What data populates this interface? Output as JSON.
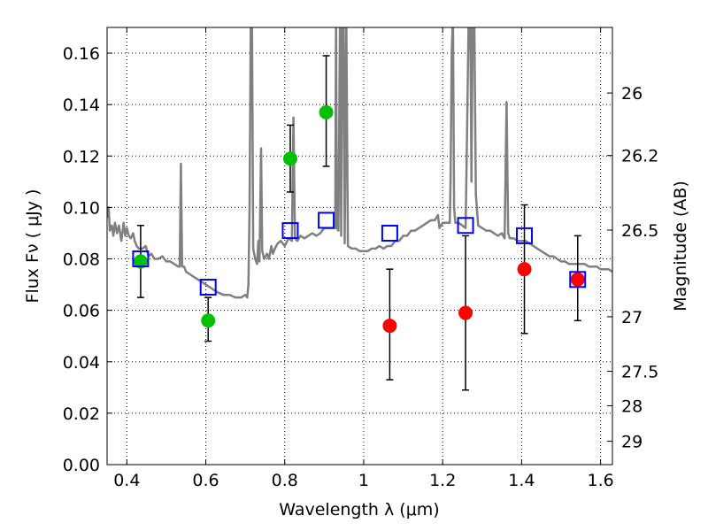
{
  "chart_data": {
    "type": "scatter",
    "xlabel": "Wavelength  λ (μm)",
    "ylabel": "Flux  Fν  ( μJy )",
    "ylabel_right": "Magnitude (AB)",
    "xlim": [
      0.35,
      1.63
    ],
    "ylim": [
      0.0,
      0.17
    ],
    "grid": true,
    "x_ticks": [
      0.4,
      0.6,
      0.8,
      1.0,
      1.2,
      1.4,
      1.6
    ],
    "x_tick_labels": [
      "0.4",
      "0.6",
      "0.8",
      "1",
      "1.2",
      "1.4",
      "1.6"
    ],
    "y_ticks": [
      0.0,
      0.02,
      0.04,
      0.06,
      0.08,
      0.1,
      0.12,
      0.14,
      0.16
    ],
    "y_tick_labels": [
      "0.00",
      "0.02",
      "0.04",
      "0.06",
      "0.08",
      "0.10",
      "0.12",
      "0.14",
      "0.16"
    ],
    "right_ticks": [
      {
        "label": "26",
        "flux": 0.1445
      },
      {
        "label": "26.2",
        "flux": 0.1202
      },
      {
        "label": "26.5",
        "flux": 0.0912
      },
      {
        "label": "27",
        "flux": 0.0575
      },
      {
        "label": "27.5",
        "flux": 0.0363
      },
      {
        "label": "28",
        "flux": 0.0229
      },
      {
        "label": "29",
        "flux": 0.0091
      }
    ],
    "colors": {
      "model": "#808080",
      "green": "#00c000",
      "red": "#ff0000",
      "model_phot": "#0000ff",
      "errorbar": "#000000",
      "grid": "#000000"
    },
    "series": [
      {
        "kind": "points",
        "color_key": "green",
        "points": [
          {
            "x": 0.435,
            "y": 0.079,
            "ylo": 0.065,
            "yhi": 0.093
          },
          {
            "x": 0.606,
            "y": 0.056,
            "ylo": 0.048,
            "yhi": 0.065
          },
          {
            "x": 0.814,
            "y": 0.119,
            "ylo": 0.106,
            "yhi": 0.132
          },
          {
            "x": 0.905,
            "y": 0.137,
            "ylo": 0.116,
            "yhi": 0.159
          }
        ]
      },
      {
        "kind": "points",
        "color_key": "red",
        "points": [
          {
            "x": 1.066,
            "y": 0.054,
            "ylo": 0.033,
            "yhi": 0.076
          },
          {
            "x": 1.258,
            "y": 0.059,
            "ylo": 0.029,
            "yhi": 0.089
          },
          {
            "x": 1.407,
            "y": 0.076,
            "ylo": 0.051,
            "yhi": 0.101
          },
          {
            "x": 1.542,
            "y": 0.072,
            "ylo": 0.056,
            "yhi": 0.089
          }
        ]
      },
      {
        "kind": "squares",
        "color_key": "model_phot",
        "points": [
          {
            "x": 0.435,
            "y": 0.08
          },
          {
            "x": 0.606,
            "y": 0.069
          },
          {
            "x": 0.814,
            "y": 0.091
          },
          {
            "x": 0.905,
            "y": 0.095
          },
          {
            "x": 1.066,
            "y": 0.09
          },
          {
            "x": 1.258,
            "y": 0.093
          },
          {
            "x": 1.407,
            "y": 0.089
          },
          {
            "x": 1.542,
            "y": 0.072
          }
        ]
      },
      {
        "kind": "line",
        "color_key": "model",
        "points": [
          [
            0.35,
            0.096
          ],
          [
            0.354,
            0.1
          ],
          [
            0.357,
            0.091
          ],
          [
            0.362,
            0.093
          ],
          [
            0.366,
            0.089
          ],
          [
            0.37,
            0.094
          ],
          [
            0.375,
            0.09
          ],
          [
            0.38,
            0.093
          ],
          [
            0.386,
            0.087
          ],
          [
            0.392,
            0.094
          ],
          [
            0.396,
            0.089
          ],
          [
            0.4,
            0.092
          ],
          [
            0.405,
            0.089
          ],
          [
            0.41,
            0.088
          ],
          [
            0.416,
            0.09
          ],
          [
            0.42,
            0.087
          ],
          [
            0.425,
            0.085
          ],
          [
            0.43,
            0.084
          ],
          [
            0.44,
            0.084
          ],
          [
            0.448,
            0.085
          ],
          [
            0.455,
            0.081
          ],
          [
            0.462,
            0.082
          ],
          [
            0.47,
            0.08
          ],
          [
            0.48,
            0.08
          ],
          [
            0.49,
            0.081
          ],
          [
            0.5,
            0.079
          ],
          [
            0.51,
            0.079
          ],
          [
            0.52,
            0.078
          ],
          [
            0.53,
            0.077
          ],
          [
            0.534,
            0.077
          ],
          [
            0.537,
            0.117
          ],
          [
            0.54,
            0.077
          ],
          [
            0.545,
            0.077
          ],
          [
            0.55,
            0.075
          ],
          [
            0.56,
            0.074
          ],
          [
            0.57,
            0.073
          ],
          [
            0.58,
            0.072
          ],
          [
            0.59,
            0.071
          ],
          [
            0.6,
            0.07
          ],
          [
            0.61,
            0.069
          ],
          [
            0.62,
            0.068
          ],
          [
            0.63,
            0.067
          ],
          [
            0.645,
            0.066
          ],
          [
            0.66,
            0.066
          ],
          [
            0.675,
            0.065
          ],
          [
            0.69,
            0.065
          ],
          [
            0.7,
            0.066
          ],
          [
            0.705,
            0.065
          ],
          [
            0.708,
            0.07
          ],
          [
            0.711,
            0.1
          ],
          [
            0.714,
            0.175
          ],
          [
            0.717,
            0.175
          ],
          [
            0.72,
            0.084
          ],
          [
            0.725,
            0.08
          ],
          [
            0.73,
            0.078
          ],
          [
            0.733,
            0.087
          ],
          [
            0.736,
            0.079
          ],
          [
            0.74,
            0.123
          ],
          [
            0.743,
            0.083
          ],
          [
            0.748,
            0.08
          ],
          [
            0.755,
            0.082
          ],
          [
            0.76,
            0.08
          ],
          [
            0.766,
            0.085
          ],
          [
            0.77,
            0.082
          ],
          [
            0.775,
            0.084
          ],
          [
            0.782,
            0.086
          ],
          [
            0.79,
            0.087
          ],
          [
            0.8,
            0.085
          ],
          [
            0.81,
            0.088
          ],
          [
            0.818,
            0.087
          ],
          [
            0.822,
            0.135
          ],
          [
            0.826,
            0.088
          ],
          [
            0.832,
            0.087
          ],
          [
            0.84,
            0.089
          ],
          [
            0.85,
            0.088
          ],
          [
            0.86,
            0.089
          ],
          [
            0.87,
            0.09
          ],
          [
            0.88,
            0.089
          ],
          [
            0.89,
            0.09
          ],
          [
            0.9,
            0.092
          ],
          [
            0.91,
            0.092
          ],
          [
            0.92,
            0.092
          ],
          [
            0.928,
            0.092
          ],
          [
            0.93,
            0.175
          ],
          [
            0.932,
            0.092
          ],
          [
            0.936,
            0.091
          ],
          [
            0.94,
            0.175
          ],
          [
            0.943,
            0.089
          ],
          [
            0.946,
            0.175
          ],
          [
            0.949,
            0.175
          ],
          [
            0.952,
            0.086
          ],
          [
            0.956,
            0.175
          ],
          [
            0.96,
            0.085
          ],
          [
            0.97,
            0.084
          ],
          [
            0.98,
            0.084
          ],
          [
            0.99,
            0.083
          ],
          [
            1.0,
            0.083
          ],
          [
            1.01,
            0.083
          ],
          [
            1.02,
            0.084
          ],
          [
            1.03,
            0.084
          ],
          [
            1.04,
            0.085
          ],
          [
            1.05,
            0.084
          ],
          [
            1.06,
            0.085
          ],
          [
            1.07,
            0.085
          ],
          [
            1.08,
            0.087
          ],
          [
            1.09,
            0.087
          ],
          [
            1.1,
            0.089
          ],
          [
            1.11,
            0.089
          ],
          [
            1.12,
            0.091
          ],
          [
            1.13,
            0.091
          ],
          [
            1.14,
            0.092
          ],
          [
            1.15,
            0.093
          ],
          [
            1.16,
            0.094
          ],
          [
            1.17,
            0.095
          ],
          [
            1.18,
            0.095
          ],
          [
            1.188,
            0.097
          ],
          [
            1.192,
            0.092
          ],
          [
            1.2,
            0.094
          ],
          [
            1.21,
            0.094
          ],
          [
            1.218,
            0.094
          ],
          [
            1.22,
            0.11
          ],
          [
            1.223,
            0.16
          ],
          [
            1.226,
            0.175
          ],
          [
            1.229,
            0.1
          ],
          [
            1.232,
            0.094
          ],
          [
            1.24,
            0.094
          ],
          [
            1.25,
            0.093
          ],
          [
            1.258,
            0.092
          ],
          [
            1.262,
            0.13
          ],
          [
            1.266,
            0.175
          ],
          [
            1.27,
            0.175
          ],
          [
            1.273,
            0.11
          ],
          [
            1.276,
            0.175
          ],
          [
            1.28,
            0.175
          ],
          [
            1.284,
            0.105
          ],
          [
            1.29,
            0.093
          ],
          [
            1.3,
            0.092
          ],
          [
            1.31,
            0.091
          ],
          [
            1.32,
            0.091
          ],
          [
            1.33,
            0.09
          ],
          [
            1.34,
            0.089
          ],
          [
            1.35,
            0.09
          ],
          [
            1.357,
            0.088
          ],
          [
            1.362,
            0.141
          ],
          [
            1.366,
            0.09
          ],
          [
            1.37,
            0.088
          ],
          [
            1.38,
            0.088
          ],
          [
            1.39,
            0.087
          ],
          [
            1.4,
            0.087
          ],
          [
            1.41,
            0.087
          ],
          [
            1.42,
            0.086
          ],
          [
            1.43,
            0.085
          ],
          [
            1.44,
            0.084
          ],
          [
            1.45,
            0.083
          ],
          [
            1.46,
            0.082
          ],
          [
            1.47,
            0.081
          ],
          [
            1.48,
            0.081
          ],
          [
            1.49,
            0.08
          ],
          [
            1.5,
            0.079
          ],
          [
            1.51,
            0.079
          ],
          [
            1.52,
            0.078
          ],
          [
            1.53,
            0.078
          ],
          [
            1.54,
            0.078
          ],
          [
            1.55,
            0.078
          ],
          [
            1.56,
            0.078
          ],
          [
            1.57,
            0.077
          ],
          [
            1.58,
            0.077
          ],
          [
            1.59,
            0.077
          ],
          [
            1.6,
            0.076
          ],
          [
            1.61,
            0.076
          ],
          [
            1.62,
            0.076
          ],
          [
            1.63,
            0.075
          ]
        ]
      }
    ]
  }
}
